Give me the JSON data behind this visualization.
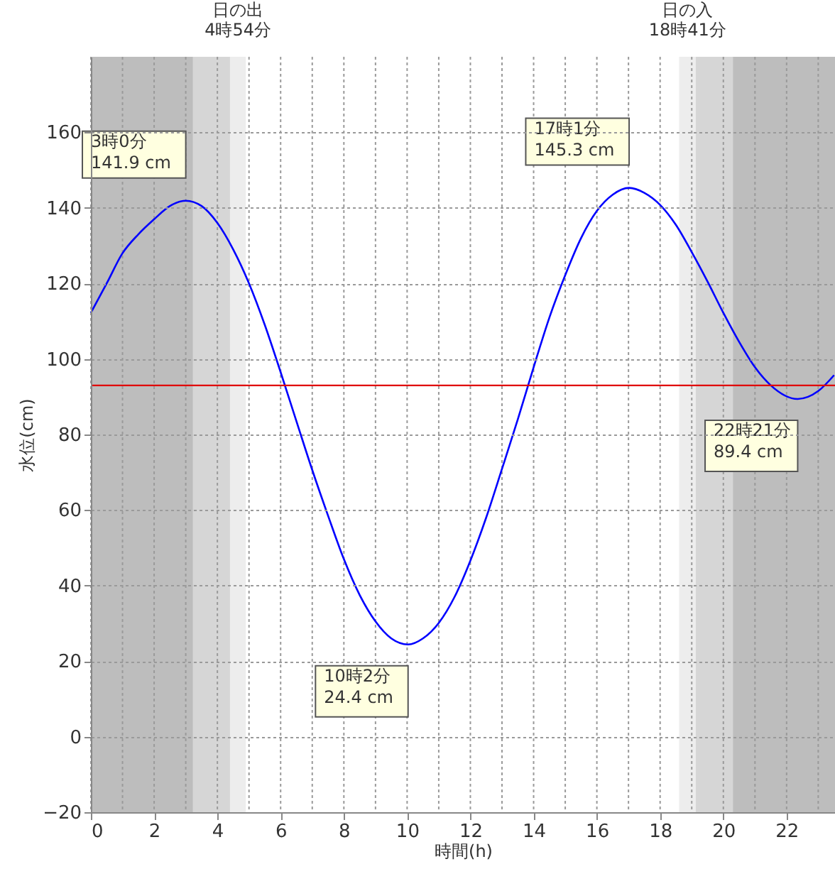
{
  "chart_data": {
    "type": "line",
    "xlabel": "時間(h)",
    "ylabel": "水位(cm)",
    "x": [
      0,
      0.5,
      1,
      1.5,
      2,
      2.5,
      3,
      3.5,
      4,
      4.5,
      5,
      5.5,
      6,
      6.5,
      7,
      7.5,
      8,
      8.5,
      9,
      9.5,
      10.03,
      10.5,
      11,
      11.5,
      12,
      12.5,
      13,
      13.5,
      14,
      14.5,
      15,
      15.5,
      16,
      16.5,
      17.02,
      17.5,
      18,
      18.5,
      19,
      19.5,
      20,
      20.5,
      21,
      21.5,
      22.35,
      23,
      23.5
    ],
    "series": [
      {
        "color": "#0000ff",
        "values": [
          112.2,
          120,
          128,
          133,
          137,
          140.5,
          141.9,
          140.5,
          136,
          129,
          120,
          109,
          96.5,
          83.5,
          70.6,
          58.5,
          47,
          37.5,
          30.5,
          26,
          24.4,
          26,
          30.1,
          37,
          46.6,
          58,
          70.9,
          84,
          97.8,
          111,
          122.2,
          132,
          139.2,
          143.5,
          145.3,
          144,
          140.8,
          135.5,
          128.3,
          120.5,
          112.2,
          104.5,
          97.8,
          93,
          89.4,
          91.5,
          95.7
        ]
      }
    ],
    "xlim": [
      0,
      23.53
    ],
    "ylim": [
      -20,
      180
    ],
    "xticks": [
      0,
      {
        "value": 1,
        "label": null
      },
      2,
      {
        "value": 3,
        "label": null
      },
      4,
      {
        "value": 5,
        "label": null
      },
      6,
      {
        "value": 7,
        "label": null
      },
      8,
      {
        "value": 9,
        "label": null
      },
      10,
      {
        "value": 11,
        "label": null
      },
      12,
      {
        "value": 13,
        "label": null
      },
      14,
      {
        "value": 15,
        "label": null
      },
      16,
      {
        "value": 17,
        "label": null
      },
      18,
      {
        "value": 19,
        "label": null
      },
      20,
      {
        "value": 21,
        "label": null
      },
      22,
      {
        "value": 23,
        "label": null
      }
    ],
    "yticks": [
      -20,
      0,
      20,
      40,
      60,
      80,
      100,
      120,
      140,
      160
    ],
    "grid": true,
    "line_style": "solid",
    "ref_lines": [
      {
        "axis": "y",
        "value": 93,
        "color": "#e00000"
      }
    ],
    "bands": [
      {
        "axis": "x",
        "from": 0,
        "to": 3.23,
        "color": "#bdbdbd"
      },
      {
        "axis": "x",
        "from": 3.23,
        "to": 4.4,
        "color": "#d6d6d6"
      },
      {
        "axis": "x",
        "from": 4.4,
        "to": 4.9,
        "color": "#ededed",
        "label": "日の出\n4時54分"
      },
      {
        "axis": "x",
        "from": 18.6,
        "to": 19.13,
        "color": "#ededed",
        "label": "日の入\n18時41分"
      },
      {
        "axis": "x",
        "from": 19.13,
        "to": 20.3,
        "color": "#d6d6d6"
      },
      {
        "axis": "x",
        "from": 20.3,
        "to": 23.53,
        "color": "#bdbdbd"
      }
    ],
    "annotations": [
      {
        "text": "3時0分\n141.9 cm",
        "x": 3,
        "y": 141.9
      },
      {
        "text": "10時2分\n24.4 cm",
        "x": 10.03,
        "y": 24.4
      },
      {
        "text": "17時1分\n145.3 cm",
        "x": 17.02,
        "y": 145.3
      },
      {
        "text": "22時21分\n89.4 cm",
        "x": 22.35,
        "y": 89.4
      }
    ]
  }
}
